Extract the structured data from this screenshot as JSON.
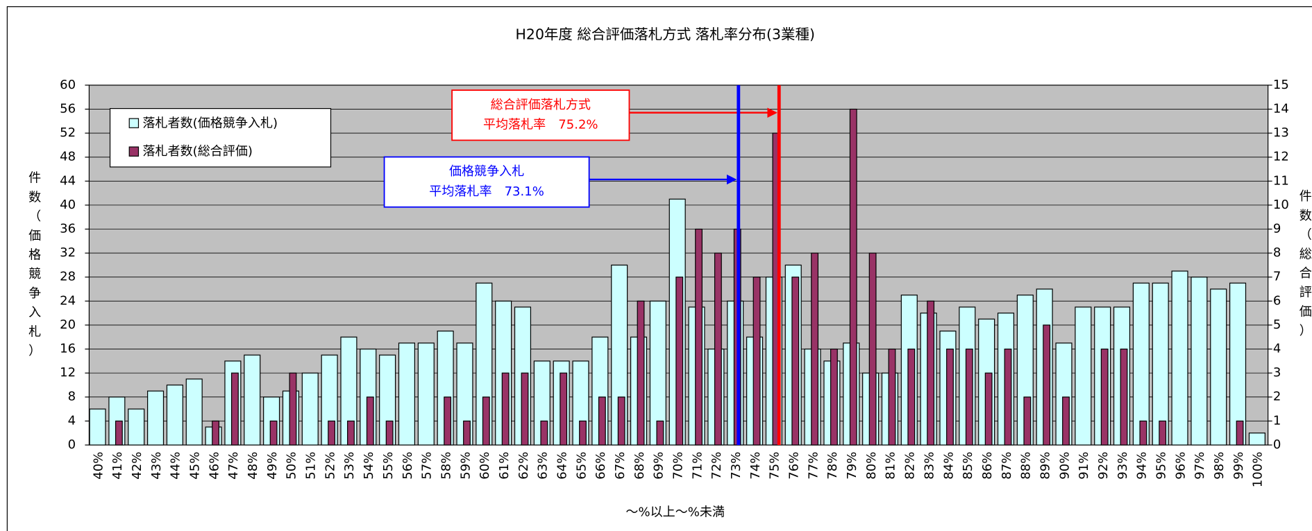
{
  "chart_data": {
    "type": "bar",
    "title": "H20年度 総合評価落札方式 落札率分布(3業種)",
    "x_label": "～%以上～%未満",
    "y_label": "件数（価格競争入札）",
    "y2_label": "件数（総合評価）",
    "categories": [
      "40%",
      "41%",
      "42%",
      "43%",
      "44%",
      "45%",
      "46%",
      "47%",
      "48%",
      "49%",
      "50%",
      "51%",
      "52%",
      "53%",
      "54%",
      "55%",
      "56%",
      "57%",
      "58%",
      "59%",
      "60%",
      "61%",
      "62%",
      "63%",
      "64%",
      "65%",
      "66%",
      "67%",
      "68%",
      "69%",
      "70%",
      "71%",
      "72%",
      "73%",
      "74%",
      "75%",
      "76%",
      "77%",
      "78%",
      "79%",
      "80%",
      "81%",
      "82%",
      "83%",
      "84%",
      "85%",
      "86%",
      "87%",
      "88%",
      "89%",
      "90%",
      "91%",
      "92%",
      "93%",
      "94%",
      "95%",
      "96%",
      "97%",
      "98%",
      "99%",
      "100%"
    ],
    "series": [
      {
        "name": "落札者数(価格競争入札)",
        "color": "#ccffff",
        "values": [
          6,
          8,
          6,
          9,
          10,
          11,
          3,
          14,
          15,
          8,
          9,
          12,
          15,
          18,
          16,
          15,
          17,
          17,
          19,
          17,
          27,
          24,
          23,
          14,
          14,
          14,
          18,
          30,
          18,
          24,
          41,
          23,
          16,
          24,
          18,
          28,
          30,
          16,
          14,
          17,
          12,
          12,
          25,
          22,
          19,
          23,
          21,
          22,
          25,
          26,
          17,
          23,
          23,
          23,
          27,
          27,
          29,
          28,
          26,
          27,
          2
        ]
      },
      {
        "name": "落札者数(総合評価)",
        "color": "#993366",
        "axis": "y2",
        "values": [
          0,
          1,
          0,
          0,
          0,
          0,
          1,
          3,
          0,
          1,
          3,
          0,
          1,
          1,
          2,
          1,
          0,
          0,
          2,
          1,
          2,
          3,
          3,
          1,
          3,
          1,
          2,
          2,
          6,
          1,
          7,
          9,
          8,
          9,
          7,
          13,
          7,
          8,
          4,
          14,
          8,
          4,
          4,
          6,
          4,
          4,
          3,
          4,
          2,
          5,
          2,
          0,
          4,
          4,
          1,
          1,
          0,
          0,
          0,
          1,
          0
        ]
      }
    ],
    "ylim": [
      0,
      60
    ],
    "yticks": [
      0,
      4,
      8,
      12,
      16,
      20,
      24,
      28,
      32,
      36,
      40,
      44,
      48,
      52,
      56,
      60
    ],
    "y2lim": [
      0,
      15
    ],
    "y2ticks": [
      0,
      1,
      2,
      3,
      4,
      5,
      6,
      7,
      8,
      9,
      10,
      11,
      12,
      13,
      14,
      15
    ],
    "grid": true,
    "reference_lines": [
      {
        "value": 75.2,
        "color": "#ff0000",
        "label": [
          "総合評価落札方式",
          "平均落札率　75.2%"
        ]
      },
      {
        "value": 73.1,
        "color": "#0000ff",
        "label": [
          "価格競争入札",
          "平均落札率　73.1%"
        ]
      }
    ]
  }
}
